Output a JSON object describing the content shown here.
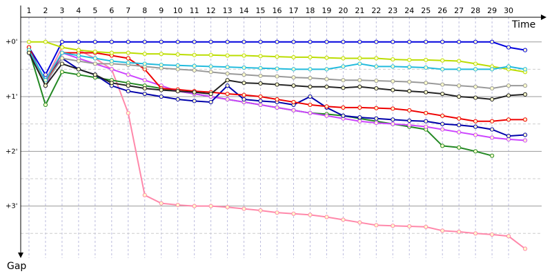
{
  "chart_data": {
    "type": "line",
    "x_label": "Time",
    "y_label": "Gap",
    "x": [
      1,
      2,
      3,
      4,
      5,
      6,
      7,
      8,
      9,
      10,
      11,
      12,
      13,
      14,
      15,
      16,
      17,
      18,
      19,
      20,
      21,
      22,
      23,
      24,
      25,
      26,
      27,
      28,
      29,
      30,
      31
    ],
    "xlim": [
      0.5,
      32
    ],
    "xticks": [
      1,
      2,
      3,
      4,
      5,
      6,
      7,
      8,
      9,
      10,
      11,
      12,
      13,
      14,
      15,
      16,
      17,
      18,
      19,
      20,
      21,
      22,
      23,
      24,
      25,
      26,
      27,
      28,
      29,
      30
    ],
    "ylim": [
      -0.45,
      3.95
    ],
    "y_inverted": true,
    "yticks": [
      {
        "value": 0,
        "label": "+0'"
      },
      {
        "value": 1,
        "label": "+1'"
      },
      {
        "value": 2,
        "label": "+2'"
      },
      {
        "value": 3,
        "label": "+3'"
      }
    ],
    "minor_yticks": [
      0.5,
      1.5,
      2.5,
      3.5
    ],
    "grid": true,
    "series": [
      {
        "color": "#0000dd",
        "values": [
          0.1,
          0.6,
          0,
          0,
          0,
          0,
          0,
          0,
          0,
          0,
          0,
          0,
          0,
          0,
          0,
          0,
          0,
          0,
          0,
          0,
          0,
          0,
          0,
          0,
          0,
          0,
          0,
          0,
          0,
          0.1,
          0.15
        ]
      },
      {
        "color": "#ff88aa",
        "values": [
          0.15,
          0.7,
          0.1,
          0.15,
          0.3,
          0.5,
          1.3,
          2.8,
          2.95,
          2.98,
          3.0,
          3.0,
          3.02,
          3.05,
          3.08,
          3.12,
          3.14,
          3.16,
          3.2,
          3.25,
          3.3,
          3.35,
          3.36,
          3.37,
          3.38,
          3.45,
          3.47,
          3.5,
          3.52,
          3.55,
          3.78
        ]
      },
      {
        "color": "#228822",
        "values": [
          0.15,
          1.15,
          0.55,
          0.6,
          0.65,
          0.7,
          0.75,
          0.8,
          0.85,
          0.9,
          0.95,
          1.0,
          1.05,
          1.1,
          1.15,
          1.2,
          1.25,
          1.3,
          1.32,
          1.35,
          1.4,
          1.45,
          1.5,
          1.55,
          1.6,
          1.9,
          1.93,
          2.0,
          2.08,
          null,
          null
        ]
      },
      {
        "color": "#cc44ff",
        "values": [
          0.1,
          0.8,
          0.2,
          0.3,
          0.4,
          0.5,
          0.6,
          0.7,
          0.8,
          0.9,
          0.95,
          1.0,
          1.05,
          1.1,
          1.15,
          1.2,
          1.25,
          1.3,
          1.35,
          1.4,
          1.45,
          1.48,
          1.5,
          1.52,
          1.55,
          1.6,
          1.65,
          1.7,
          1.75,
          1.78,
          1.8
        ]
      },
      {
        "color": "#0000aa",
        "values": [
          0.2,
          0.7,
          0.3,
          0.5,
          0.6,
          0.8,
          0.9,
          0.95,
          1.0,
          1.05,
          1.08,
          1.1,
          0.8,
          1.05,
          1.08,
          1.1,
          1.15,
          1.0,
          1.2,
          1.35,
          1.38,
          1.4,
          1.42,
          1.44,
          1.45,
          1.5,
          1.52,
          1.55,
          1.6,
          1.72,
          1.7
        ]
      },
      {
        "color": "#ee0000",
        "values": [
          0.1,
          0.75,
          0.2,
          0.2,
          0.2,
          0.25,
          0.3,
          0.5,
          0.85,
          0.87,
          0.9,
          0.92,
          0.95,
          0.97,
          1.0,
          1.05,
          1.1,
          1.15,
          1.18,
          1.2,
          1.2,
          1.21,
          1.22,
          1.25,
          1.3,
          1.35,
          1.4,
          1.45,
          1.45,
          1.42,
          1.42
        ]
      },
      {
        "color": "#bbdd00",
        "values": [
          0.0,
          0.0,
          0.1,
          0.15,
          0.18,
          0.2,
          0.2,
          0.22,
          0.22,
          0.23,
          0.24,
          0.24,
          0.25,
          0.25,
          0.26,
          0.27,
          0.28,
          0.28,
          0.29,
          0.3,
          0.3,
          0.3,
          0.32,
          0.33,
          0.33,
          0.34,
          0.35,
          0.4,
          0.45,
          0.5,
          0.55
        ]
      },
      {
        "color": "#999999",
        "values": [
          0.2,
          0.75,
          0.3,
          0.35,
          0.4,
          0.4,
          0.42,
          0.45,
          0.48,
          0.5,
          0.52,
          0.55,
          0.58,
          0.6,
          0.62,
          0.63,
          0.65,
          0.66,
          0.68,
          0.7,
          0.7,
          0.71,
          0.72,
          0.73,
          0.75,
          0.78,
          0.8,
          0.82,
          0.85,
          0.8,
          0.8
        ]
      },
      {
        "color": "#22bbdd",
        "values": [
          0.15,
          0.7,
          0.2,
          0.25,
          0.3,
          0.35,
          0.38,
          0.4,
          0.42,
          0.43,
          0.44,
          0.45,
          0.46,
          0.47,
          0.48,
          0.49,
          0.5,
          0.5,
          0.5,
          0.45,
          0.4,
          0.45,
          0.45,
          0.46,
          0.47,
          0.5,
          0.5,
          0.5,
          0.5,
          0.45,
          0.5
        ]
      },
      {
        "color": "#222222",
        "values": [
          0.2,
          0.8,
          0.4,
          0.5,
          0.6,
          0.75,
          0.8,
          0.85,
          0.88,
          0.9,
          0.92,
          0.95,
          0.7,
          0.75,
          0.76,
          0.78,
          0.8,
          0.82,
          0.82,
          0.84,
          0.82,
          0.85,
          0.88,
          0.9,
          0.92,
          0.95,
          1.0,
          1.02,
          1.05,
          0.98,
          0.96
        ]
      }
    ]
  }
}
